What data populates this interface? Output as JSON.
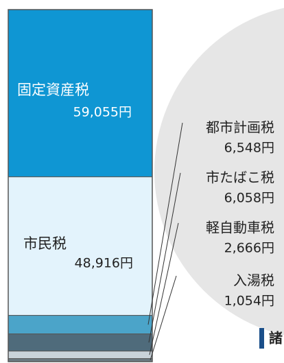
{
  "chart_data": {
    "type": "bar",
    "stacked": true,
    "categories": [
      "固定資産税",
      "市民税",
      "都市計画税",
      "市たばこ税",
      "軽自動車税",
      "入湯税"
    ],
    "values": [
      59055,
      48916,
      6548,
      6058,
      2666,
      1054
    ],
    "value_labels": [
      "59,055円",
      "48,916円",
      "6,548円",
      "6,058円",
      "2,666円",
      "1,054円"
    ],
    "colors": [
      "#0f96d3",
      "#e3f3fc",
      "#4ba4c9",
      "#4f6b7b",
      "#c9d3d9",
      "#6d7c84"
    ],
    "annotation": "諸"
  }
}
